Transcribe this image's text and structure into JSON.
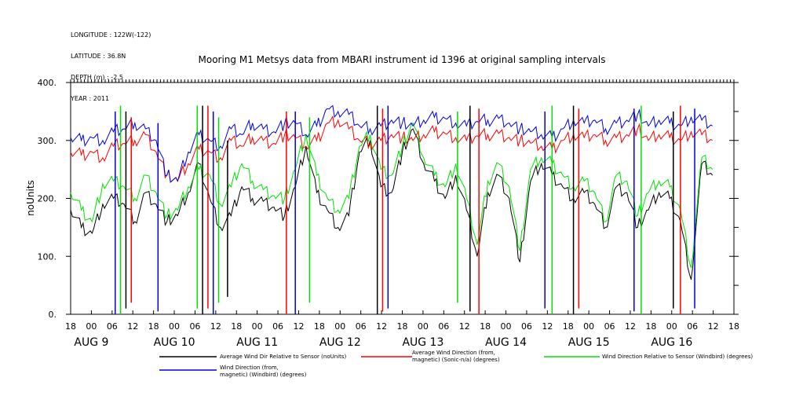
{
  "meta": {
    "longitude": "LONGITUDE : 122W(-122)",
    "latitude": "LATITUDE : 36.8N",
    "depth": "DEPTH (m) : -2.5",
    "year": "YEAR : 2011"
  },
  "chart_data": {
    "type": "line",
    "title": "Mooring M1 Metsys data from MBARI instrument id 1396 at original sampling intervals",
    "xlabel": "",
    "ylabel": "noUnits",
    "ylim": [
      0,
      400
    ],
    "xlim": [
      0,
      180
    ],
    "x_unit": "hours from AUG 8 18:00",
    "yticks": [
      0,
      100,
      200,
      300,
      400
    ],
    "ytick_labels": [
      "0.",
      "100.",
      "200.",
      "300.",
      "400."
    ],
    "hour_ticks": [
      {
        "x": 0,
        "label": "18"
      },
      {
        "x": 6,
        "label": "00"
      },
      {
        "x": 12,
        "label": "06"
      },
      {
        "x": 18,
        "label": "12"
      },
      {
        "x": 24,
        "label": "18"
      },
      {
        "x": 30,
        "label": "00"
      },
      {
        "x": 36,
        "label": "06"
      },
      {
        "x": 42,
        "label": "12"
      },
      {
        "x": 48,
        "label": "18"
      },
      {
        "x": 54,
        "label": "00"
      },
      {
        "x": 60,
        "label": "06"
      },
      {
        "x": 66,
        "label": "12"
      },
      {
        "x": 72,
        "label": "18"
      },
      {
        "x": 78,
        "label": "00"
      },
      {
        "x": 84,
        "label": "06"
      },
      {
        "x": 90,
        "label": "12"
      },
      {
        "x": 96,
        "label": "18"
      },
      {
        "x": 102,
        "label": "00"
      },
      {
        "x": 108,
        "label": "06"
      },
      {
        "x": 114,
        "label": "12"
      },
      {
        "x": 120,
        "label": "18"
      },
      {
        "x": 126,
        "label": "00"
      },
      {
        "x": 132,
        "label": "06"
      },
      {
        "x": 138,
        "label": "12"
      },
      {
        "x": 144,
        "label": "18"
      },
      {
        "x": 150,
        "label": "00"
      },
      {
        "x": 156,
        "label": "06"
      },
      {
        "x": 162,
        "label": "12"
      },
      {
        "x": 168,
        "label": "18"
      },
      {
        "x": 174,
        "label": "00"
      },
      {
        "x": 180,
        "label": "06"
      },
      {
        "x": 186,
        "label": "12"
      },
      {
        "x": 192,
        "label": "18"
      }
    ],
    "day_labels": [
      {
        "x": 6,
        "label": "AUG  9"
      },
      {
        "x": 30,
        "label": "AUG 10"
      },
      {
        "x": 54,
        "label": "AUG 11"
      },
      {
        "x": 78,
        "label": "AUG 12"
      },
      {
        "x": 102,
        "label": "AUG 13"
      },
      {
        "x": 126,
        "label": "AUG 14"
      },
      {
        "x": 150,
        "label": "AUG 15"
      },
      {
        "x": 174,
        "label": "AUG 16"
      }
    ],
    "series": [
      {
        "name": "Average Wind Dir Relative to Sensor (noUnits)",
        "color": "#000000",
        "x": [
          0,
          3,
          6,
          9,
          12,
          15,
          18,
          21,
          24,
          27,
          30,
          33,
          36,
          39,
          42,
          45,
          48,
          51,
          54,
          57,
          60,
          63,
          66,
          69,
          72,
          75,
          78,
          81,
          84,
          87,
          90,
          93,
          96,
          99,
          102,
          105,
          108,
          111,
          114,
          117,
          120,
          123,
          126,
          129,
          132,
          135,
          138,
          141,
          144,
          147,
          150,
          153,
          156,
          159,
          162,
          165,
          168,
          171,
          174,
          177,
          180
        ],
        "y": [
          180,
          150,
          140,
          190,
          200,
          190,
          160,
          210,
          190,
          160,
          170,
          210,
          260,
          200,
          150,
          170,
          220,
          200,
          195,
          185,
          170,
          220,
          290,
          210,
          180,
          150,
          170,
          280,
          300,
          220,
          210,
          280,
          320,
          260,
          230,
          200,
          240,
          180,
          100,
          210,
          240,
          200,
          90,
          230,
          260,
          240,
          220,
          200,
          210,
          190,
          150,
          220,
          210,
          150,
          180,
          210,
          200,
          160,
          60,
          260,
          240
        ]
      },
      {
        "name": "Average Wind Direction (from, magnetic) (Sonic-n/a) (degrees)",
        "color": "#ff0000",
        "x": [
          0,
          3,
          6,
          9,
          12,
          15,
          18,
          21,
          24,
          27,
          30,
          33,
          36,
          39,
          42,
          45,
          48,
          51,
          54,
          57,
          60,
          63,
          66,
          69,
          72,
          75,
          78,
          81,
          84,
          87,
          90,
          93,
          96,
          99,
          102,
          105,
          108,
          111,
          114,
          117,
          120,
          123,
          126,
          129,
          132,
          135,
          138,
          141,
          144,
          147,
          150,
          153,
          156,
          159,
          162,
          165,
          168,
          171,
          174,
          177,
          180
        ],
        "y": [
          280,
          275,
          280,
          270,
          290,
          295,
          300,
          310,
          280,
          240,
          230,
          260,
          285,
          280,
          270,
          300,
          290,
          305,
          300,
          295,
          310,
          305,
          290,
          300,
          330,
          335,
          320,
          300,
          295,
          300,
          310,
          305,
          300,
          310,
          315,
          312,
          305,
          300,
          308,
          310,
          312,
          305,
          300,
          295,
          290,
          285,
          300,
          310,
          305,
          310,
          300,
          305,
          310,
          320,
          300,
          310,
          305,
          300,
          315,
          310,
          300
        ]
      },
      {
        "name": "Wind Direction Relative to Sensor (Windbird) (degrees)",
        "color": "#00e000",
        "x": [
          0,
          3,
          6,
          9,
          12,
          15,
          18,
          21,
          24,
          27,
          30,
          33,
          36,
          39,
          42,
          45,
          48,
          51,
          54,
          57,
          60,
          63,
          66,
          69,
          72,
          75,
          78,
          81,
          84,
          87,
          90,
          93,
          96,
          99,
          102,
          105,
          108,
          111,
          114,
          117,
          120,
          123,
          126,
          129,
          132,
          135,
          138,
          141,
          144,
          147,
          150,
          153,
          156,
          159,
          162,
          165,
          168,
          171,
          174,
          177,
          180
        ],
        "y": [
          210,
          180,
          160,
          225,
          230,
          220,
          200,
          240,
          210,
          170,
          180,
          220,
          250,
          240,
          190,
          220,
          260,
          230,
          215,
          205,
          200,
          250,
          310,
          240,
          200,
          180,
          200,
          290,
          310,
          250,
          240,
          290,
          330,
          270,
          240,
          220,
          260,
          200,
          120,
          230,
          260,
          220,
          110,
          250,
          270,
          260,
          240,
          220,
          230,
          210,
          160,
          240,
          230,
          170,
          210,
          230,
          220,
          180,
          80,
          270,
          250
        ]
      },
      {
        "name": "Wind Direction (from, magnetic) (Windbird) (degrees)",
        "color": "#0000e0",
        "x": [
          0,
          3,
          6,
          9,
          12,
          15,
          18,
          21,
          24,
          27,
          30,
          33,
          36,
          39,
          42,
          45,
          48,
          51,
          54,
          57,
          60,
          63,
          66,
          69,
          72,
          75,
          78,
          81,
          84,
          87,
          90,
          93,
          96,
          99,
          102,
          105,
          108,
          111,
          114,
          117,
          120,
          123,
          126,
          129,
          132,
          135,
          138,
          141,
          144,
          147,
          150,
          153,
          156,
          159,
          162,
          165,
          168,
          171,
          174,
          177,
          180
        ],
        "y": [
          305,
          300,
          305,
          300,
          315,
          320,
          330,
          320,
          300,
          240,
          230,
          280,
          310,
          300,
          290,
          320,
          310,
          330,
          320,
          315,
          330,
          330,
          310,
          325,
          355,
          350,
          345,
          325,
          320,
          325,
          335,
          330,
          325,
          335,
          340,
          338,
          330,
          325,
          333,
          335,
          338,
          330,
          320,
          315,
          310,
          305,
          320,
          335,
          330,
          335,
          320,
          330,
          335,
          345,
          325,
          335,
          330,
          325,
          340,
          335,
          325
        ]
      }
    ],
    "dropouts": [
      {
        "x": 12.5,
        "values": [
          0,
          350
        ]
      },
      {
        "x": 14,
        "values": [
          0,
          360
        ]
      },
      {
        "x": 15.5,
        "values": [
          10,
          350
        ]
      },
      {
        "x": 17,
        "values": [
          20,
          340
        ]
      },
      {
        "x": 24.5,
        "values": [
          5,
          330
        ]
      },
      {
        "x": 35.5,
        "values": [
          10,
          360
        ]
      },
      {
        "x": 37,
        "values": [
          0,
          360
        ]
      },
      {
        "x": 38.5,
        "values": [
          10,
          360
        ]
      },
      {
        "x": 40,
        "values": [
          0,
          350
        ]
      },
      {
        "x": 41.5,
        "values": [
          20,
          340
        ]
      },
      {
        "x": 44,
        "values": [
          30,
          300
        ]
      },
      {
        "x": 60.5,
        "values": [
          0,
          350
        ]
      },
      {
        "x": 63,
        "values": [
          0,
          350
        ]
      },
      {
        "x": 67,
        "values": [
          20,
          340
        ]
      },
      {
        "x": 86,
        "values": [
          0,
          360
        ]
      },
      {
        "x": 87.5,
        "values": [
          5,
          355
        ]
      },
      {
        "x": 89,
        "values": [
          10,
          360
        ]
      },
      {
        "x": 108.5,
        "values": [
          20,
          350
        ]
      },
      {
        "x": 112,
        "values": [
          5,
          360
        ]
      },
      {
        "x": 114.5,
        "values": [
          0,
          355
        ]
      },
      {
        "x": 133,
        "values": [
          10,
          350
        ]
      },
      {
        "x": 135,
        "values": [
          0,
          360
        ]
      },
      {
        "x": 141,
        "values": [
          0,
          360
        ]
      },
      {
        "x": 142.5,
        "values": [
          10,
          355
        ]
      },
      {
        "x": 158,
        "values": [
          5,
          355
        ]
      },
      {
        "x": 160,
        "values": [
          0,
          360
        ]
      },
      {
        "x": 169,
        "values": [
          10,
          350
        ]
      },
      {
        "x": 171,
        "values": [
          0,
          360
        ]
      },
      {
        "x": 175,
        "values": [
          10,
          355
        ]
      }
    ]
  }
}
